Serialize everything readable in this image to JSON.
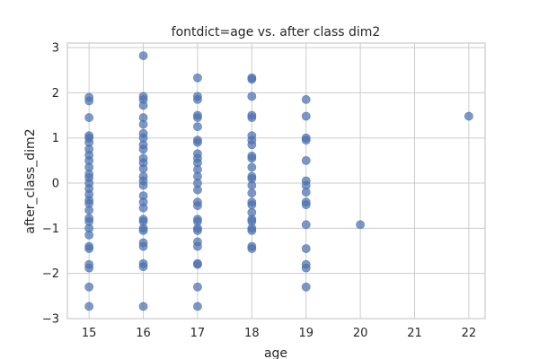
{
  "chart_data": {
    "type": "scatter",
    "title": "fontdict=age vs. after class dim2",
    "xlabel": "age",
    "ylabel": "after_class_dim2",
    "xlim": [
      14.6,
      22.3
    ],
    "ylim": [
      -3,
      3.1
    ],
    "xticks": [
      15,
      16,
      17,
      18,
      19,
      20,
      21,
      22
    ],
    "yticks": [
      -3,
      -2,
      -1,
      0,
      1,
      2,
      3
    ],
    "grid": true,
    "series": [
      {
        "color": "#4c72b0",
        "points": [
          [
            15,
            1.9
          ],
          [
            15,
            1.82
          ],
          [
            15,
            1.45
          ],
          [
            15,
            1.05
          ],
          [
            15,
            1.0
          ],
          [
            15,
            0.9
          ],
          [
            15,
            0.75
          ],
          [
            15,
            0.62
          ],
          [
            15,
            0.5
          ],
          [
            15,
            0.35
          ],
          [
            15,
            0.2
          ],
          [
            15,
            0.12
          ],
          [
            15,
            0.0
          ],
          [
            15,
            -0.12
          ],
          [
            15,
            -0.25
          ],
          [
            15,
            -0.38
          ],
          [
            15,
            -0.45
          ],
          [
            15,
            -0.6
          ],
          [
            15,
            -0.78
          ],
          [
            15,
            -0.85
          ],
          [
            15,
            -1.0
          ],
          [
            15,
            -1.15
          ],
          [
            15,
            -1.4
          ],
          [
            15,
            -1.45
          ],
          [
            15,
            -1.8
          ],
          [
            15,
            -1.88
          ],
          [
            15,
            -2.3
          ],
          [
            15,
            -2.73
          ],
          [
            16,
            2.82
          ],
          [
            16,
            1.92
          ],
          [
            16,
            1.85
          ],
          [
            16,
            1.72
          ],
          [
            16,
            1.45
          ],
          [
            16,
            1.3
          ],
          [
            16,
            1.1
          ],
          [
            16,
            1.0
          ],
          [
            16,
            0.85
          ],
          [
            16,
            0.75
          ],
          [
            16,
            0.55
          ],
          [
            16,
            0.45
          ],
          [
            16,
            0.32
          ],
          [
            16,
            0.15
          ],
          [
            16,
            0.05
          ],
          [
            16,
            -0.05
          ],
          [
            16,
            -0.28
          ],
          [
            16,
            -0.42
          ],
          [
            16,
            -0.55
          ],
          [
            16,
            -0.8
          ],
          [
            16,
            -0.85
          ],
          [
            16,
            -1.0
          ],
          [
            16,
            -1.05
          ],
          [
            16,
            -1.32
          ],
          [
            16,
            -1.4
          ],
          [
            16,
            -1.78
          ],
          [
            16,
            -1.85
          ],
          [
            16,
            -2.73
          ],
          [
            17,
            2.33
          ],
          [
            17,
            1.92
          ],
          [
            17,
            1.85
          ],
          [
            17,
            1.5
          ],
          [
            17,
            1.45
          ],
          [
            17,
            1.25
          ],
          [
            17,
            0.95
          ],
          [
            17,
            0.9
          ],
          [
            17,
            0.65
          ],
          [
            17,
            0.55
          ],
          [
            17,
            0.45
          ],
          [
            17,
            0.3
          ],
          [
            17,
            0.15
          ],
          [
            17,
            0.0
          ],
          [
            17,
            -0.15
          ],
          [
            17,
            -0.42
          ],
          [
            17,
            -0.5
          ],
          [
            17,
            -0.8
          ],
          [
            17,
            -0.85
          ],
          [
            17,
            -1.0
          ],
          [
            17,
            -1.05
          ],
          [
            17,
            -1.3
          ],
          [
            17,
            -1.4
          ],
          [
            17,
            -1.78
          ],
          [
            17,
            -1.8
          ],
          [
            17,
            -2.3
          ],
          [
            17,
            -2.73
          ],
          [
            18,
            2.33
          ],
          [
            18,
            2.3
          ],
          [
            18,
            1.92
          ],
          [
            18,
            1.5
          ],
          [
            18,
            1.45
          ],
          [
            18,
            1.05
          ],
          [
            18,
            0.95
          ],
          [
            18,
            0.85
          ],
          [
            18,
            0.6
          ],
          [
            18,
            0.55
          ],
          [
            18,
            0.35
          ],
          [
            18,
            0.15
          ],
          [
            18,
            0.1
          ],
          [
            18,
            -0.05
          ],
          [
            18,
            -0.22
          ],
          [
            18,
            -0.42
          ],
          [
            18,
            -0.48
          ],
          [
            18,
            -0.65
          ],
          [
            18,
            -0.8
          ],
          [
            18,
            -0.85
          ],
          [
            18,
            -1.0
          ],
          [
            18,
            -1.05
          ],
          [
            18,
            -1.4
          ],
          [
            18,
            -1.45
          ],
          [
            19,
            1.85
          ],
          [
            19,
            1.48
          ],
          [
            19,
            1.0
          ],
          [
            19,
            0.95
          ],
          [
            19,
            0.5
          ],
          [
            19,
            0.05
          ],
          [
            19,
            -0.05
          ],
          [
            19,
            -0.2
          ],
          [
            19,
            -0.42
          ],
          [
            19,
            -0.48
          ],
          [
            19,
            -0.92
          ],
          [
            19,
            -1.45
          ],
          [
            19,
            -1.8
          ],
          [
            19,
            -1.88
          ],
          [
            19,
            -2.3
          ],
          [
            20,
            -0.92
          ],
          [
            22,
            1.48
          ]
        ]
      }
    ]
  }
}
